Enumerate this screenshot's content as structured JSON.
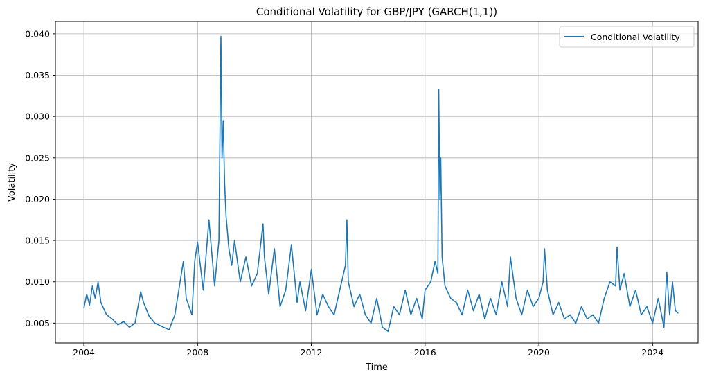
{
  "chart_data": {
    "type": "line",
    "title": "Conditional Volatility for GBP/JPY (GARCH(1,1))",
    "xlabel": "Time",
    "ylabel": "Volatility",
    "xlim": [
      2003.0,
      2025.6
    ],
    "ylim": [
      0.0026,
      0.0415
    ],
    "xticks": [
      2004,
      2008,
      2012,
      2016,
      2020,
      2024
    ],
    "xtick_labels": [
      "2004",
      "2008",
      "2012",
      "2016",
      "2020",
      "2024"
    ],
    "yticks": [
      0.005,
      0.01,
      0.015,
      0.02,
      0.025,
      0.03,
      0.035,
      0.04
    ],
    "ytick_labels": [
      "0.005",
      "0.010",
      "0.015",
      "0.020",
      "0.025",
      "0.030",
      "0.035",
      "0.040"
    ],
    "grid": true,
    "legend_position": "top-right",
    "series": [
      {
        "name": "Conditional Volatility",
        "color": "#1f77b4",
        "x": [
          2004.0,
          2004.1,
          2004.2,
          2004.3,
          2004.4,
          2004.5,
          2004.6,
          2004.8,
          2005.0,
          2005.2,
          2005.4,
          2005.6,
          2005.8,
          2006.0,
          2006.1,
          2006.3,
          2006.5,
          2006.8,
          2007.0,
          2007.2,
          2007.5,
          2007.6,
          2007.8,
          2007.9,
          2008.0,
          2008.2,
          2008.4,
          2008.6,
          2008.75,
          2008.82,
          2008.86,
          2008.9,
          2008.95,
          2009.0,
          2009.1,
          2009.2,
          2009.3,
          2009.5,
          2009.7,
          2009.9,
          2010.1,
          2010.3,
          2010.35,
          2010.5,
          2010.7,
          2010.9,
          2011.1,
          2011.3,
          2011.5,
          2011.6,
          2011.8,
          2012.0,
          2012.2,
          2012.4,
          2012.6,
          2012.8,
          2013.0,
          2013.2,
          2013.25,
          2013.3,
          2013.5,
          2013.7,
          2013.9,
          2014.1,
          2014.3,
          2014.5,
          2014.7,
          2014.9,
          2015.1,
          2015.3,
          2015.5,
          2015.7,
          2015.9,
          2016.0,
          2016.2,
          2016.35,
          2016.45,
          2016.48,
          2016.52,
          2016.55,
          2016.6,
          2016.7,
          2016.9,
          2017.1,
          2017.3,
          2017.5,
          2017.7,
          2017.9,
          2018.1,
          2018.3,
          2018.5,
          2018.7,
          2018.9,
          2019.0,
          2019.2,
          2019.4,
          2019.6,
          2019.8,
          2020.0,
          2020.15,
          2020.2,
          2020.3,
          2020.5,
          2020.7,
          2020.9,
          2021.1,
          2021.3,
          2021.5,
          2021.7,
          2021.9,
          2022.1,
          2022.3,
          2022.5,
          2022.7,
          2022.75,
          2022.85,
          2023.0,
          2023.2,
          2023.4,
          2023.6,
          2023.8,
          2024.0,
          2024.2,
          2024.4,
          2024.5,
          2024.6,
          2024.7,
          2024.8,
          2024.9
        ],
        "values": [
          0.0068,
          0.0085,
          0.0072,
          0.0095,
          0.008,
          0.01,
          0.0075,
          0.006,
          0.0055,
          0.0048,
          0.0052,
          0.0045,
          0.005,
          0.0088,
          0.0075,
          0.0058,
          0.005,
          0.0045,
          0.0042,
          0.006,
          0.0125,
          0.008,
          0.006,
          0.0125,
          0.0148,
          0.009,
          0.0175,
          0.0095,
          0.015,
          0.0397,
          0.025,
          0.0295,
          0.022,
          0.018,
          0.014,
          0.012,
          0.015,
          0.01,
          0.013,
          0.0095,
          0.011,
          0.017,
          0.013,
          0.0085,
          0.014,
          0.007,
          0.009,
          0.0145,
          0.0075,
          0.01,
          0.0065,
          0.0115,
          0.006,
          0.0085,
          0.007,
          0.006,
          0.009,
          0.012,
          0.0175,
          0.01,
          0.007,
          0.0085,
          0.006,
          0.005,
          0.008,
          0.0045,
          0.004,
          0.007,
          0.006,
          0.009,
          0.006,
          0.008,
          0.0055,
          0.009,
          0.01,
          0.0125,
          0.011,
          0.0333,
          0.02,
          0.025,
          0.013,
          0.0095,
          0.008,
          0.0075,
          0.006,
          0.009,
          0.0065,
          0.0085,
          0.0055,
          0.008,
          0.006,
          0.01,
          0.007,
          0.013,
          0.008,
          0.006,
          0.009,
          0.007,
          0.008,
          0.01,
          0.014,
          0.009,
          0.006,
          0.0075,
          0.0055,
          0.006,
          0.005,
          0.007,
          0.0055,
          0.006,
          0.005,
          0.008,
          0.01,
          0.0095,
          0.0142,
          0.009,
          0.011,
          0.007,
          0.009,
          0.006,
          0.007,
          0.005,
          0.008,
          0.0045,
          0.0112,
          0.006,
          0.01,
          0.0065,
          0.0062
        ]
      }
    ]
  }
}
